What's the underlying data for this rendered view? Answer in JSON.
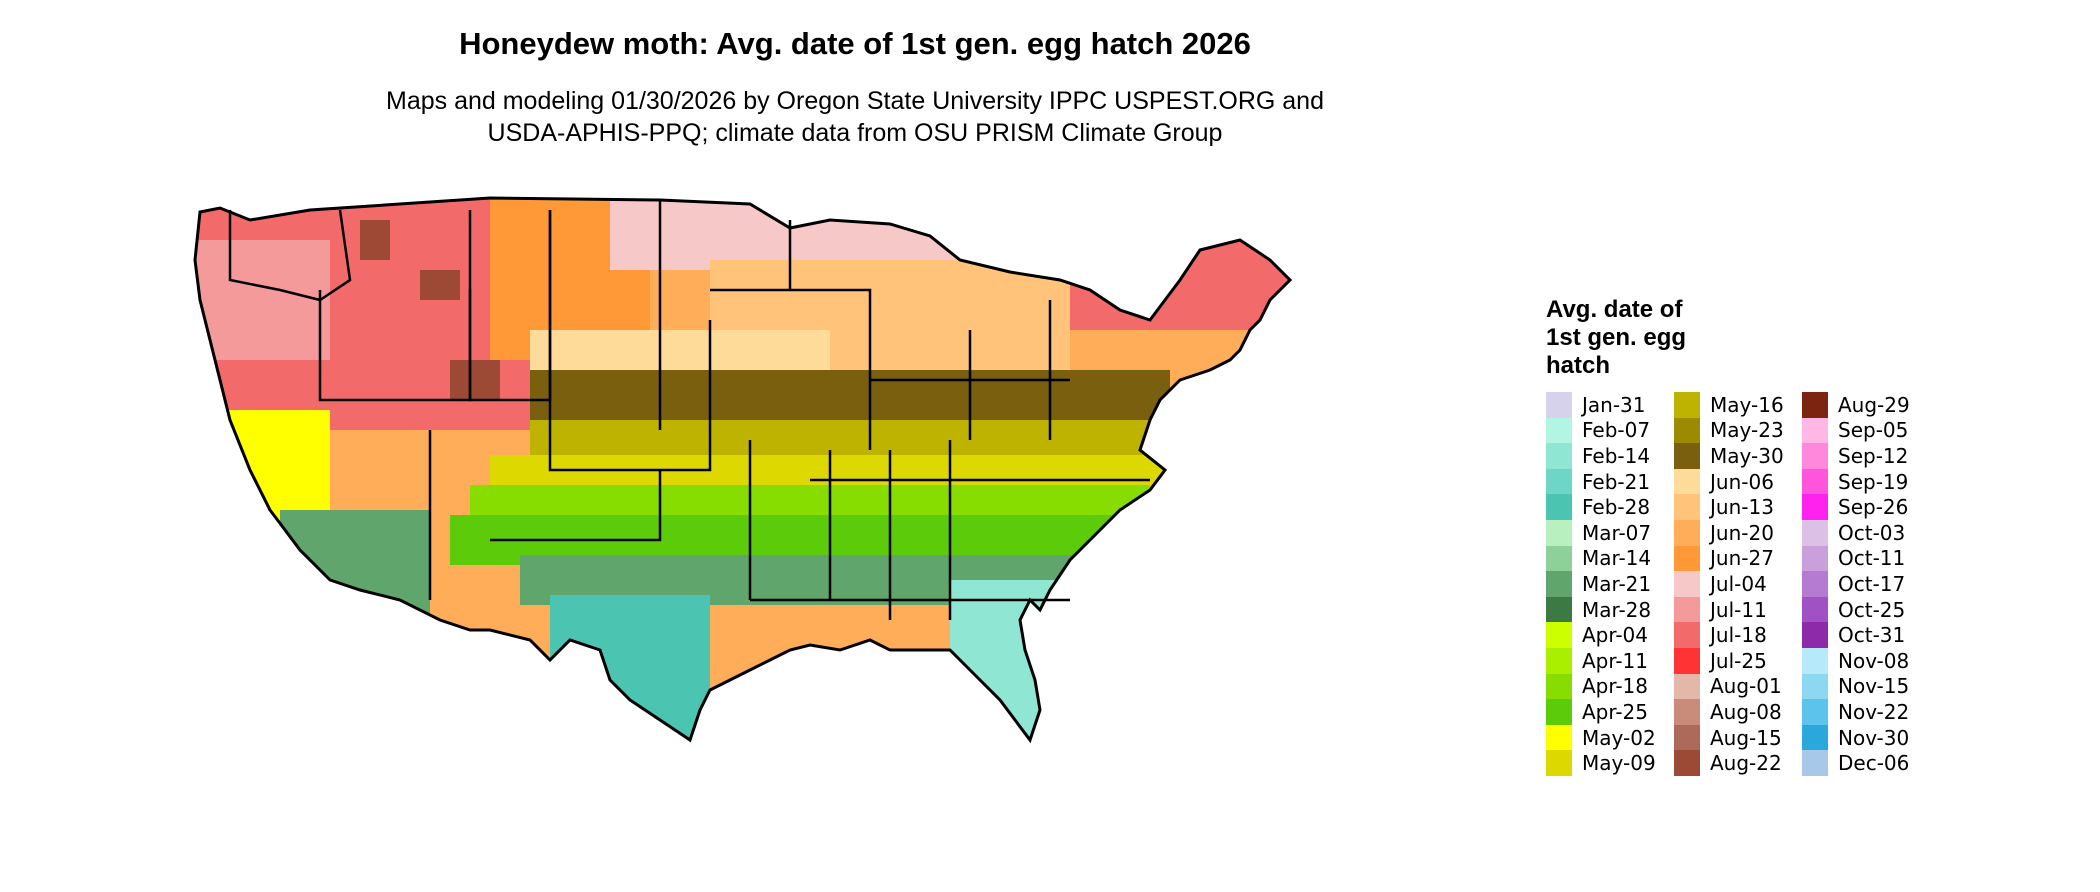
{
  "title": "Honeydew moth: Avg. date of 1st gen. egg hatch 2026",
  "subtitle_line1": "Maps and modeling 01/30/2026 by Oregon State University IPPC USPEST.ORG and",
  "subtitle_line2": "USDA-APHIS-PPQ; climate data from OSU PRISM Climate Group",
  "legend": {
    "title_line1": "Avg. date of",
    "title_line2": "1st gen. egg",
    "title_line3": "hatch",
    "items": [
      {
        "label": "Jan-31",
        "color": "#d7d2ec"
      },
      {
        "label": "Feb-07",
        "color": "#b2f5e3"
      },
      {
        "label": "Feb-14",
        "color": "#8fe6d3"
      },
      {
        "label": "Feb-21",
        "color": "#6dd6c6"
      },
      {
        "label": "Feb-28",
        "color": "#4cc4b2"
      },
      {
        "label": "Mar-07",
        "color": "#b9f0c0"
      },
      {
        "label": "Mar-14",
        "color": "#8dd09a"
      },
      {
        "label": "Mar-21",
        "color": "#5fa56c"
      },
      {
        "label": "Mar-28",
        "color": "#3b7a45"
      },
      {
        "label": "Apr-04",
        "color": "#ccff00"
      },
      {
        "label": "Apr-11",
        "color": "#aaee00"
      },
      {
        "label": "Apr-18",
        "color": "#88dd00"
      },
      {
        "label": "Apr-25",
        "color": "#5ccc0a"
      },
      {
        "label": "May-02",
        "color": "#ffff00"
      },
      {
        "label": "May-09",
        "color": "#ddd800"
      },
      {
        "label": "May-16",
        "color": "#bdb300"
      },
      {
        "label": "May-23",
        "color": "#9c8a00"
      },
      {
        "label": "May-30",
        "color": "#7a5f0f"
      },
      {
        "label": "Jun-06",
        "color": "#ffdb9a"
      },
      {
        "label": "Jun-13",
        "color": "#ffc47a"
      },
      {
        "label": "Jun-20",
        "color": "#ffad58"
      },
      {
        "label": "Jun-27",
        "color": "#ff9836"
      },
      {
        "label": "Jul-04",
        "color": "#f7c8c8"
      },
      {
        "label": "Jul-11",
        "color": "#f59a9a"
      },
      {
        "label": "Jul-18",
        "color": "#f26a6a"
      },
      {
        "label": "Jul-25",
        "color": "#ff3333"
      },
      {
        "label": "Aug-01",
        "color": "#e3b8a8"
      },
      {
        "label": "Aug-08",
        "color": "#c98c7b"
      },
      {
        "label": "Aug-15",
        "color": "#ad6a5a"
      },
      {
        "label": "Aug-22",
        "color": "#9c4a36"
      },
      {
        "label": "Aug-29",
        "color": "#7d2410"
      },
      {
        "label": "Sep-05",
        "color": "#ffb8e6"
      },
      {
        "label": "Sep-12",
        "color": "#ff88dd"
      },
      {
        "label": "Sep-19",
        "color": "#ff55dd"
      },
      {
        "label": "Sep-26",
        "color": "#ff22ee"
      },
      {
        "label": "Oct-03",
        "color": "#dcc0e6"
      },
      {
        "label": "Oct-11",
        "color": "#c9a0dc"
      },
      {
        "label": "Oct-17",
        "color": "#b57ad2"
      },
      {
        "label": "Oct-25",
        "color": "#a052c4"
      },
      {
        "label": "Oct-31",
        "color": "#8d2aaa"
      },
      {
        "label": "Nov-08",
        "color": "#b6eaf8"
      },
      {
        "label": "Nov-15",
        "color": "#8cd8f2"
      },
      {
        "label": "Nov-22",
        "color": "#5cc4ec"
      },
      {
        "label": "Nov-30",
        "color": "#2aa8dc"
      },
      {
        "label": "Dec-06",
        "color": "#a8c8ea"
      }
    ]
  },
  "map_colors": {
    "outline": "#000000",
    "northwest": "#f26a6a",
    "northwest_light": "#f59a9a",
    "mountains": "#9c4a36",
    "plains_north": "#ff9836",
    "plains_mid": "#ffad58",
    "midwest": "#ffc47a",
    "midwest_light": "#ffdb9a",
    "north_pink": "#f7c8c8",
    "central_band": "#7a5f0f",
    "south_band": "#bdb300",
    "south_yellow": "#ddd800",
    "green_a": "#88dd00",
    "green_b": "#5ccc0a",
    "coast_green": "#5fa56c",
    "teal": "#4cc4b2",
    "florida": "#8fe6d3",
    "desert_yellow": "#ffff00"
  }
}
